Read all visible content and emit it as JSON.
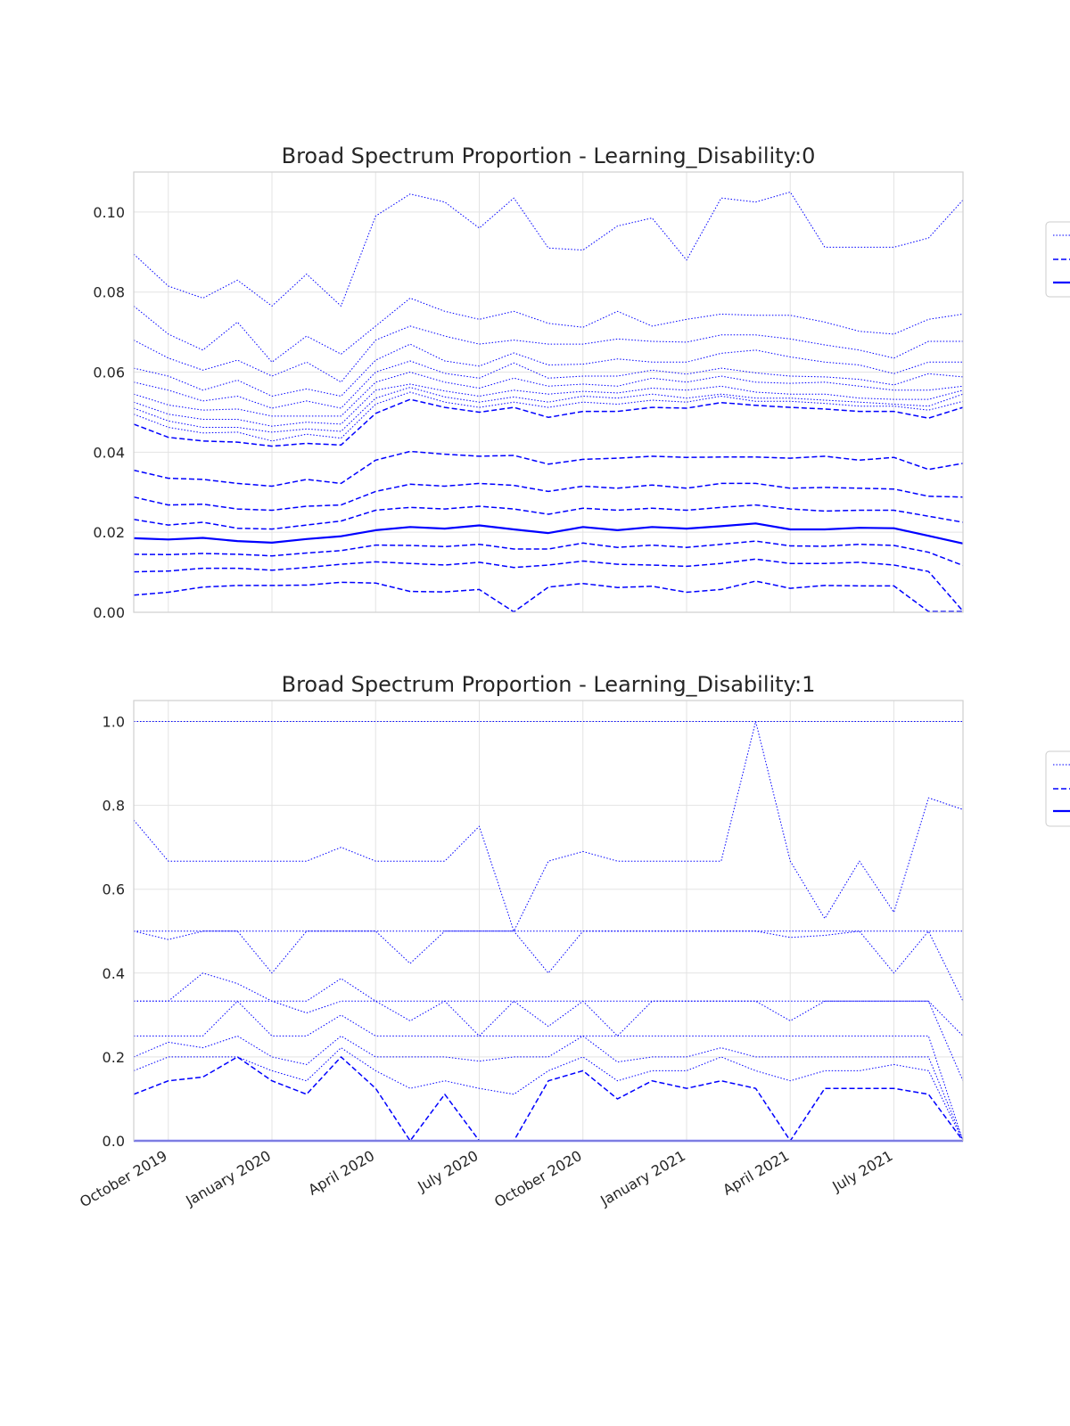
{
  "colors": {
    "line": "#0000ff",
    "grid": "#e3e3e3",
    "frame": "#cfcfcf",
    "text": "#262626"
  },
  "chart_data": [
    {
      "type": "line",
      "title": "Broad Spectrum Proportion - Learning_Disability:0",
      "ylim": [
        0,
        0.11
      ],
      "yticks": [
        0.0,
        0.02,
        0.04,
        0.06,
        0.08,
        0.1
      ],
      "ytick_labels": [
        "0.00",
        "0.02",
        "0.04",
        "0.06",
        "0.08",
        "0.10"
      ],
      "x": [
        "2019-09",
        "2019-10",
        "2019-11",
        "2019-12",
        "2020-01",
        "2020-02",
        "2020-03",
        "2020-04",
        "2020-05",
        "2020-06",
        "2020-07",
        "2020-08",
        "2020-09",
        "2020-10",
        "2020-11",
        "2020-12",
        "2021-01",
        "2021-02",
        "2021-03",
        "2021-04",
        "2021-05",
        "2021-06",
        "2021-07",
        "2021-08",
        "2021-09"
      ],
      "xticks": [
        "2019-10",
        "2020-01",
        "2020-04",
        "2020-07",
        "2020-10",
        "2021-01",
        "2021-04",
        "2021-07"
      ],
      "xtick_labels": [],
      "grid": true,
      "legend": "right",
      "series": [
        {
          "style": "dotted",
          "values": [
            0.0895,
            0.0815,
            0.0785,
            0.083,
            0.0765,
            0.0845,
            0.0765,
            0.099,
            0.1045,
            0.1025,
            0.096,
            0.1035,
            0.091,
            0.0905,
            0.0965,
            0.0985,
            0.088,
            0.1035,
            0.1025,
            0.105,
            0.0912,
            0.0912,
            0.0912,
            0.0935,
            0.103
          ]
        },
        {
          "style": "dotted",
          "values": [
            0.0765,
            0.0695,
            0.0655,
            0.0725,
            0.0625,
            0.069,
            0.0645,
            0.0715,
            0.0785,
            0.0752,
            0.0732,
            0.0752,
            0.0722,
            0.0712,
            0.0752,
            0.0715,
            0.0732,
            0.0745,
            0.0742,
            0.0742,
            0.0725,
            0.0702,
            0.0695,
            0.0732,
            0.0745
          ]
        },
        {
          "style": "dotted",
          "values": [
            0.068,
            0.0635,
            0.0605,
            0.063,
            0.059,
            0.0625,
            0.0575,
            0.068,
            0.0715,
            0.069,
            0.067,
            0.068,
            0.067,
            0.067,
            0.0683,
            0.0677,
            0.0675,
            0.0693,
            0.0693,
            0.0683,
            0.0668,
            0.0655,
            0.0635,
            0.0677,
            0.0677
          ]
        },
        {
          "style": "dotted",
          "values": [
            0.061,
            0.059,
            0.0555,
            0.058,
            0.054,
            0.0558,
            0.054,
            0.063,
            0.067,
            0.0628,
            0.0615,
            0.0648,
            0.0618,
            0.062,
            0.0633,
            0.0625,
            0.0625,
            0.0647,
            0.0655,
            0.0638,
            0.0625,
            0.0618,
            0.0596,
            0.0625,
            0.0625
          ]
        },
        {
          "style": "dotted",
          "values": [
            0.0575,
            0.0555,
            0.0528,
            0.054,
            0.051,
            0.0528,
            0.051,
            0.06,
            0.0628,
            0.0597,
            0.0585,
            0.0623,
            0.0585,
            0.059,
            0.059,
            0.0605,
            0.0595,
            0.061,
            0.0598,
            0.059,
            0.0588,
            0.0582,
            0.0568,
            0.0596,
            0.0588
          ]
        },
        {
          "style": "dotted",
          "values": [
            0.0545,
            0.0518,
            0.0505,
            0.0508,
            0.049,
            0.049,
            0.049,
            0.0575,
            0.06,
            0.0575,
            0.056,
            0.0585,
            0.0565,
            0.057,
            0.0565,
            0.0585,
            0.0575,
            0.059,
            0.0575,
            0.0572,
            0.0575,
            0.0565,
            0.0555,
            0.0555,
            0.0565
          ]
        },
        {
          "style": "dotted",
          "values": [
            0.0525,
            0.0495,
            0.0482,
            0.0482,
            0.0465,
            0.0475,
            0.047,
            0.0555,
            0.057,
            0.0553,
            0.054,
            0.0555,
            0.0545,
            0.0552,
            0.0548,
            0.056,
            0.0555,
            0.0565,
            0.055,
            0.0545,
            0.0545,
            0.0535,
            0.0532,
            0.0532,
            0.0555
          ]
        },
        {
          "style": "dotted",
          "values": [
            0.051,
            0.0478,
            0.0462,
            0.0462,
            0.045,
            0.0458,
            0.0452,
            0.0535,
            0.0562,
            0.0538,
            0.0525,
            0.0538,
            0.0525,
            0.054,
            0.0535,
            0.0545,
            0.0535,
            0.0545,
            0.0535,
            0.0535,
            0.053,
            0.0525,
            0.052,
            0.0515,
            0.0545
          ]
        },
        {
          "style": "dotted",
          "values": [
            0.0495,
            0.0462,
            0.0448,
            0.045,
            0.0428,
            0.0445,
            0.0435,
            0.052,
            0.055,
            0.0525,
            0.0512,
            0.0525,
            0.0512,
            0.0525,
            0.052,
            0.053,
            0.0525,
            0.054,
            0.0527,
            0.0527,
            0.0522,
            0.0515,
            0.0515,
            0.0505,
            0.0527
          ]
        },
        {
          "style": "dashed",
          "values": [
            0.047,
            0.0437,
            0.0428,
            0.0425,
            0.0415,
            0.0422,
            0.0418,
            0.0497,
            0.0532,
            0.0512,
            0.05,
            0.0512,
            0.0487,
            0.0502,
            0.0502,
            0.0512,
            0.051,
            0.0524,
            0.0517,
            0.0512,
            0.0508,
            0.0502,
            0.0502,
            0.0485,
            0.0512
          ]
        },
        {
          "style": "dashed",
          "values": [
            0.0355,
            0.0335,
            0.0332,
            0.0322,
            0.0315,
            0.0332,
            0.0322,
            0.038,
            0.0402,
            0.0395,
            0.039,
            0.0392,
            0.037,
            0.0382,
            0.0385,
            0.039,
            0.0387,
            0.0388,
            0.0388,
            0.0385,
            0.039,
            0.038,
            0.0387,
            0.0357,
            0.0372
          ]
        },
        {
          "style": "dashed",
          "values": [
            0.0288,
            0.0268,
            0.027,
            0.0258,
            0.0255,
            0.0265,
            0.0268,
            0.0302,
            0.032,
            0.0315,
            0.0322,
            0.0317,
            0.0302,
            0.0315,
            0.031,
            0.0318,
            0.031,
            0.0322,
            0.0322,
            0.031,
            0.0312,
            0.031,
            0.0308,
            0.029,
            0.0288
          ]
        },
        {
          "style": "dashed",
          "values": [
            0.0232,
            0.0218,
            0.0225,
            0.021,
            0.0208,
            0.0218,
            0.0228,
            0.0255,
            0.0262,
            0.0258,
            0.0265,
            0.0258,
            0.0245,
            0.026,
            0.0255,
            0.026,
            0.0255,
            0.0262,
            0.0268,
            0.0258,
            0.0253,
            0.0255,
            0.0255,
            0.024,
            0.0225
          ]
        },
        {
          "style": "solid",
          "values": [
            0.0185,
            0.0182,
            0.0186,
            0.0178,
            0.0174,
            0.0183,
            0.019,
            0.0205,
            0.0213,
            0.0209,
            0.0217,
            0.0207,
            0.0198,
            0.0213,
            0.0205,
            0.0213,
            0.0209,
            0.0215,
            0.0222,
            0.0207,
            0.0207,
            0.0211,
            0.021,
            0.0191,
            0.0172
          ]
        },
        {
          "style": "dashed",
          "values": [
            0.0145,
            0.0144,
            0.0147,
            0.0145,
            0.0141,
            0.0148,
            0.0154,
            0.0168,
            0.0167,
            0.0164,
            0.017,
            0.0158,
            0.0158,
            0.0173,
            0.0162,
            0.0168,
            0.0162,
            0.017,
            0.0178,
            0.0166,
            0.0165,
            0.017,
            0.0167,
            0.015,
            0.0117
          ]
        },
        {
          "style": "dashed",
          "values": [
            0.0101,
            0.0103,
            0.011,
            0.011,
            0.0105,
            0.0112,
            0.012,
            0.0126,
            0.0122,
            0.0118,
            0.0125,
            0.0112,
            0.0118,
            0.0128,
            0.012,
            0.0118,
            0.0115,
            0.0122,
            0.0133,
            0.0122,
            0.0122,
            0.0125,
            0.0118,
            0.0102,
            0.0003
          ]
        },
        {
          "style": "dashed",
          "values": [
            0.0043,
            0.005,
            0.0063,
            0.0067,
            0.0067,
            0.0068,
            0.0075,
            0.0073,
            0.0052,
            0.0051,
            0.0057,
            0.0001,
            0.0063,
            0.0072,
            0.0062,
            0.0065,
            0.005,
            0.0057,
            0.0078,
            0.006,
            0.0067,
            0.0066,
            0.0066,
            0.0002,
            0.0002
          ]
        },
        {
          "style": "dotted",
          "values": [
            0,
            0,
            0,
            0,
            0,
            0,
            0,
            0,
            0,
            0,
            0,
            0,
            0,
            0,
            0,
            0,
            0,
            0,
            0,
            0,
            0,
            0,
            0,
            0,
            0
          ]
        }
      ]
    },
    {
      "type": "line",
      "title": "Broad Spectrum Proportion - Learning_Disability:1",
      "ylim": [
        0,
        1.05
      ],
      "yticks": [
        0.0,
        0.2,
        0.4,
        0.6,
        0.8,
        1.0
      ],
      "ytick_labels": [
        "0.0",
        "0.2",
        "0.4",
        "0.6",
        "0.8",
        "1.0"
      ],
      "x": [
        "2019-09",
        "2019-10",
        "2019-11",
        "2019-12",
        "2020-01",
        "2020-02",
        "2020-03",
        "2020-04",
        "2020-05",
        "2020-06",
        "2020-07",
        "2020-08",
        "2020-09",
        "2020-10",
        "2020-11",
        "2020-12",
        "2021-01",
        "2021-02",
        "2021-03",
        "2021-04",
        "2021-05",
        "2021-06",
        "2021-07",
        "2021-08",
        "2021-09"
      ],
      "xticks": [
        "2019-10",
        "2020-01",
        "2020-04",
        "2020-07",
        "2020-10",
        "2021-01",
        "2021-04",
        "2021-07"
      ],
      "xtick_labels": [
        "October 2019",
        "January 2020",
        "April 2020",
        "July 2020",
        "October 2020",
        "January 2021",
        "April 2021",
        "July 2021"
      ],
      "grid": true,
      "legend": "right",
      "series": [
        {
          "style": "dotted",
          "values": [
            1,
            1,
            1,
            1,
            1,
            1,
            1,
            1,
            1,
            1,
            1,
            1,
            1,
            1,
            1,
            1,
            1,
            1,
            1,
            1,
            1,
            1,
            1,
            1,
            1
          ]
        },
        {
          "style": "dotted",
          "values": [
            0.765,
            0.667,
            0.667,
            0.667,
            0.667,
            0.667,
            0.7,
            0.667,
            0.667,
            0.667,
            0.75,
            0.5,
            0.667,
            0.69,
            0.667,
            0.667,
            0.667,
            0.667,
            1.0,
            0.667,
            0.53,
            0.667,
            0.545,
            0.818,
            0.79
          ]
        },
        {
          "style": "dotted",
          "values": [
            0.5,
            0.5,
            0.5,
            0.5,
            0.5,
            0.5,
            0.5,
            0.5,
            0.5,
            0.5,
            0.5,
            0.5,
            0.5,
            0.5,
            0.5,
            0.5,
            0.5,
            0.5,
            0.5,
            0.5,
            0.5,
            0.5,
            0.5,
            0.5,
            0.5
          ]
        },
        {
          "style": "dotted",
          "values": [
            0.5,
            0.48,
            0.5,
            0.5,
            0.4,
            0.5,
            0.5,
            0.5,
            0.423,
            0.5,
            0.5,
            0.5,
            0.4,
            0.5,
            0.5,
            0.5,
            0.5,
            0.5,
            0.5,
            0.485,
            0.49,
            0.5,
            0.4,
            0.5,
            0.333
          ]
        },
        {
          "style": "dotted",
          "values": [
            0.333,
            0.333,
            0.4,
            0.375,
            0.333,
            0.333,
            0.387,
            0.333,
            0.333,
            0.333,
            0.333,
            0.333,
            0.333,
            0.333,
            0.333,
            0.333,
            0.333,
            0.333,
            0.333,
            0.333,
            0.333,
            0.333,
            0.333,
            0.333,
            0.25
          ]
        },
        {
          "style": "dotted",
          "values": [
            0.333,
            0.333,
            0.333,
            0.333,
            0.333,
            0.305,
            0.333,
            0.333,
            0.286,
            0.333,
            0.25,
            0.333,
            0.273,
            0.333,
            0.25,
            0.333,
            0.333,
            0.333,
            0.333,
            0.286,
            0.333,
            0.333,
            0.333,
            0.333,
            0.143
          ]
        },
        {
          "style": "dotted",
          "values": [
            0.25,
            0.25,
            0.25,
            0.333,
            0.25,
            0.25,
            0.3,
            0.25,
            0.25,
            0.25,
            0.25,
            0.25,
            0.25,
            0.25,
            0.25,
            0.25,
            0.25,
            0.25,
            0.25,
            0.25,
            0.25,
            0.25,
            0.25,
            0.25,
            0
          ]
        },
        {
          "style": "dotted",
          "values": [
            0.2,
            0.235,
            0.222,
            0.25,
            0.2,
            0.182,
            0.25,
            0.2,
            0.2,
            0.2,
            0.19,
            0.2,
            0.2,
            0.25,
            0.188,
            0.2,
            0.2,
            0.222,
            0.2,
            0.2,
            0.2,
            0.2,
            0.2,
            0.2,
            0
          ]
        },
        {
          "style": "dotted",
          "values": [
            0.167,
            0.2,
            0.2,
            0.2,
            0.167,
            0.143,
            0.222,
            0.167,
            0.125,
            0.143,
            0.125,
            0.111,
            0.167,
            0.2,
            0.143,
            0.167,
            0.167,
            0.2,
            0.167,
            0.143,
            0.167,
            0.167,
            0.182,
            0.167,
            0
          ]
        },
        {
          "style": "dashed",
          "values": [
            0.111,
            0.143,
            0.152,
            0.2,
            0.143,
            0.111,
            0.2,
            0.125,
            0,
            0.111,
            0,
            0,
            0.143,
            0.167,
            0.1,
            0.143,
            0.125,
            0.143,
            0.125,
            0,
            0.125,
            0.125,
            0.125,
            0.111,
            0
          ]
        },
        {
          "style": "solid",
          "values": [
            0,
            0,
            0,
            0,
            0,
            0,
            0,
            0,
            0,
            0,
            0,
            0,
            0,
            0,
            0,
            0,
            0,
            0,
            0,
            0,
            0,
            0,
            0,
            0,
            0
          ]
        }
      ]
    }
  ]
}
